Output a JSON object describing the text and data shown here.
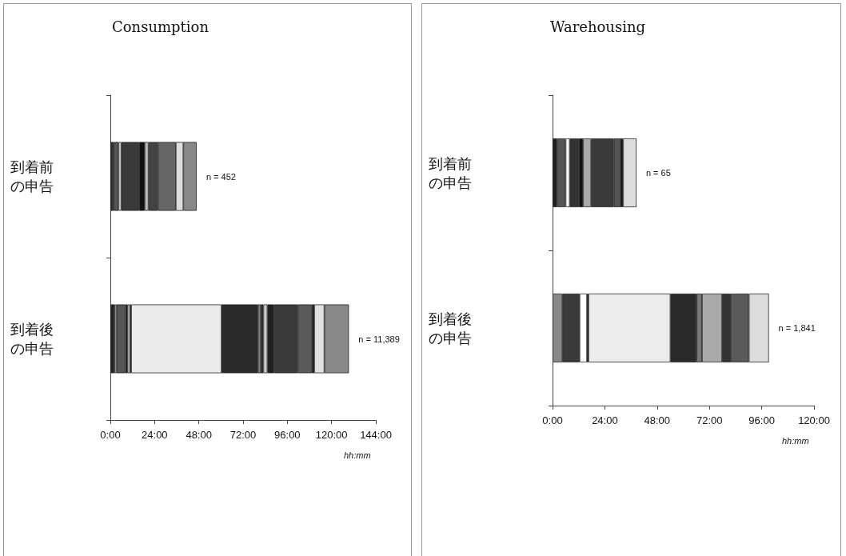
{
  "chart_data": [
    {
      "type": "bar",
      "orientation": "horizontal",
      "stacked": true,
      "title": "Consumption",
      "xlabel": "hh:mm",
      "categories": [
        "到着前の申告",
        "到着後の申告"
      ],
      "xlim": [
        0,
        144
      ],
      "xticks": [
        {
          "value": 0,
          "label": "0:00"
        },
        {
          "value": 24,
          "label": "24:00"
        },
        {
          "value": 48,
          "label": "48:00"
        },
        {
          "value": 72,
          "label": "72:00"
        },
        {
          "value": 96,
          "label": "96:00"
        },
        {
          "value": 120,
          "label": "120:00"
        },
        {
          "value": 144,
          "label": "144:00"
        }
      ],
      "annotations": [
        {
          "text": "n = 452",
          "x": 46.8,
          "y": "到着前の申告"
        },
        {
          "text": "n = 11,389",
          "x": 129.4,
          "y": "到着後の申告"
        }
      ],
      "series": [
        {
          "values": [
            1.9,
            null
          ],
          "color": "#333333"
        },
        {
          "values": [
            2.6,
            null
          ],
          "color": "#555555"
        },
        {
          "values": [
            1.4,
            null
          ],
          "color": "#f0f0f0"
        },
        {
          "values": [
            9.7,
            null
          ],
          "color": "#3a3a3a"
        },
        {
          "values": [
            3.0,
            null
          ],
          "color": "#111111"
        },
        {
          "values": [
            2.1,
            null
          ],
          "color": "#bbbbbb"
        },
        {
          "values": [
            5.1,
            null
          ],
          "color": "#444444"
        },
        {
          "values": [
            9.7,
            null
          ],
          "color": "#666666"
        },
        {
          "values": [
            4.1,
            null
          ],
          "color": "#dddddd"
        },
        {
          "values": [
            7.2,
            null
          ],
          "color": "#888888"
        },
        {
          "values": [
            null,
            2.2
          ],
          "color": "#222222"
        },
        {
          "values": [
            null,
            1.1
          ],
          "color": "#aaaaaa"
        },
        {
          "values": [
            null,
            5.1
          ],
          "color": "#555555"
        },
        {
          "values": [
            null,
            1.0
          ],
          "color": "#111111"
        },
        {
          "values": [
            null,
            1.2
          ],
          "color": "#ffffff"
        },
        {
          "values": [
            null,
            0.7
          ],
          "color": "#222222"
        },
        {
          "values": [
            null,
            49.0
          ],
          "color": "#ebebeb"
        },
        {
          "values": [
            null,
            19.8
          ],
          "color": "#2a2a2a"
        },
        {
          "values": [
            null,
            1.5
          ],
          "color": "#888888"
        },
        {
          "values": [
            null,
            1.4
          ],
          "color": "#333333"
        },
        {
          "values": [
            null,
            2.2
          ],
          "color": "#cccccc"
        },
        {
          "values": [
            null,
            3.6
          ],
          "color": "#222222"
        },
        {
          "values": [
            null,
            12.8
          ],
          "color": "#3a3a3a"
        },
        {
          "values": [
            null,
            7.8
          ],
          "color": "#5a5a5a"
        },
        {
          "values": [
            null,
            1.2
          ],
          "color": "#111111"
        },
        {
          "values": [
            null,
            5.5
          ],
          "color": "#e0e0e0"
        },
        {
          "values": [
            null,
            13.3
          ],
          "color": "#888888"
        }
      ]
    },
    {
      "type": "bar",
      "orientation": "horizontal",
      "stacked": true,
      "title": "Warehousing",
      "xlabel": "hh:mm",
      "categories": [
        "到着前の申告",
        "到着後の申告"
      ],
      "xlim": [
        0,
        120
      ],
      "xticks": [
        {
          "value": 0,
          "label": "0:00"
        },
        {
          "value": 24,
          "label": "24:00"
        },
        {
          "value": 48,
          "label": "48:00"
        },
        {
          "value": 72,
          "label": "72:00"
        },
        {
          "value": 96,
          "label": "96:00"
        },
        {
          "value": 120,
          "label": "120:00"
        }
      ],
      "annotations": [
        {
          "text": "n = 65",
          "x": 38.5,
          "y": "到着前の申告"
        },
        {
          "text": "n = 1,841",
          "x": 99.3,
          "y": "到着後の申告"
        }
      ],
      "series": [
        {
          "values": [
            2.1,
            null
          ],
          "color": "#222222"
        },
        {
          "values": [
            3.9,
            null
          ],
          "color": "#555555"
        },
        {
          "values": [
            1.9,
            null
          ],
          "color": "#f5f5f5"
        },
        {
          "values": [
            4.2,
            null
          ],
          "color": "#333333"
        },
        {
          "values": [
            1.9,
            null
          ],
          "color": "#111111"
        },
        {
          "values": [
            3.7,
            null
          ],
          "color": "#aaaaaa"
        },
        {
          "values": [
            10.4,
            null
          ],
          "color": "#3a3a3a"
        },
        {
          "values": [
            3.1,
            null
          ],
          "color": "#555555"
        },
        {
          "values": [
            1.2,
            null
          ],
          "color": "#111111"
        },
        {
          "values": [
            6.1,
            null
          ],
          "color": "#dddddd"
        },
        {
          "values": [
            null,
            4.5
          ],
          "color": "#888888"
        },
        {
          "values": [
            null,
            7.9
          ],
          "color": "#3a3a3a"
        },
        {
          "values": [
            null,
            3.4
          ],
          "color": "#ffffff"
        },
        {
          "values": [
            null,
            0.7
          ],
          "color": "#111111"
        },
        {
          "values": [
            null,
            37.6
          ],
          "color": "#ececec"
        },
        {
          "values": [
            null,
            12.0
          ],
          "color": "#2a2a2a"
        },
        {
          "values": [
            null,
            2.5
          ],
          "color": "#777777"
        },
        {
          "values": [
            null,
            9.2
          ],
          "color": "#aaaaaa"
        },
        {
          "values": [
            null,
            4.0
          ],
          "color": "#333333"
        },
        {
          "values": [
            null,
            8.3
          ],
          "color": "#5a5a5a"
        },
        {
          "values": [
            null,
            9.2
          ],
          "color": "#dddddd"
        }
      ]
    }
  ]
}
